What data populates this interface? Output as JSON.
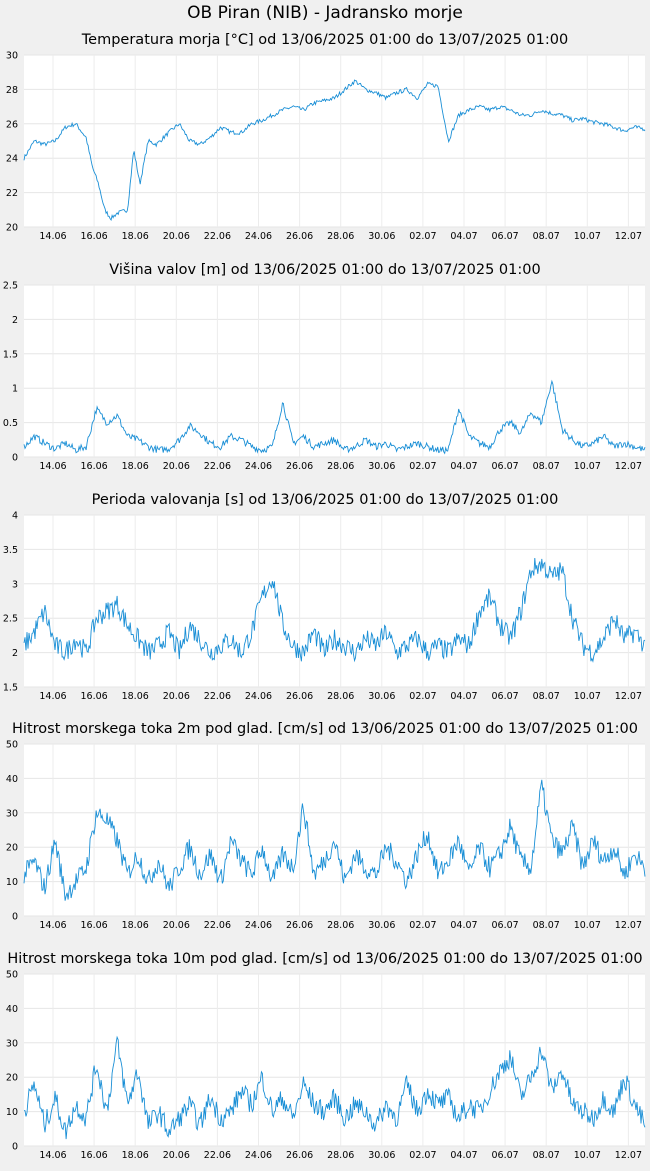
{
  "title": "OB Piran (NIB) - Jadransko morje",
  "x_ticks": [
    "14.06",
    "16.06",
    "18.06",
    "20.06",
    "22.06",
    "24.06",
    "26.06",
    "28.06",
    "30.06",
    "02.07",
    "04.07",
    "06.07",
    "08.07",
    "10.07",
    "12.07"
  ],
  "line_color": "#1a8fd6",
  "chart_data": [
    {
      "type": "line",
      "title": "Temperatura morja [°C] od 13/06/2025 01:00 do 13/07/2025 01:00",
      "ylim": [
        20,
        30
      ],
      "yticks": [
        "20",
        "22",
        "24",
        "26",
        "28",
        "30"
      ],
      "x_range_days": [
        0,
        30
      ],
      "grid": true,
      "series": [
        {
          "x": [
            0,
            0.5,
            1,
            1.5,
            2,
            2.5,
            3,
            3.3,
            3.6,
            3.9,
            4.2,
            4.5,
            5,
            5.3,
            5.6,
            6,
            6.4,
            7,
            7.5,
            8,
            8.5,
            9,
            9.5,
            10,
            10.5,
            11,
            11.5,
            12,
            12.5,
            13,
            13.5,
            14,
            15,
            16,
            16.5,
            17,
            17.5,
            18,
            18.5,
            19,
            19.5,
            20,
            20.5,
            21,
            21.5,
            22,
            22.5,
            23,
            23.5,
            24,
            24.5,
            25,
            25.5,
            26,
            26.5,
            27,
            27.5,
            28,
            28.5,
            29,
            29.5,
            30
          ],
          "y": [
            24,
            25,
            24.8,
            25,
            25.8,
            26,
            25.2,
            23.5,
            22.5,
            21,
            20.5,
            20.8,
            21,
            24.5,
            22.5,
            25,
            24.8,
            25.5,
            26,
            25,
            24.8,
            25.2,
            25.8,
            25.5,
            25.5,
            26,
            26.2,
            26.5,
            26.8,
            27,
            26.8,
            27.2,
            27.5,
            28.5,
            28,
            27.8,
            27.5,
            27.8,
            28,
            27.5,
            28.3,
            28.2,
            25,
            26.5,
            26.8,
            27,
            26.8,
            27,
            26.8,
            26.5,
            26.5,
            26.8,
            26.6,
            26.5,
            26.2,
            26.3,
            26.1,
            26,
            25.8,
            25.6,
            25.8,
            25.7
          ]
        }
      ]
    },
    {
      "type": "line",
      "title": "Višina valov [m] od 13/06/2025 01:00 do 13/07/2025 01:00",
      "ylim": [
        0,
        2.5
      ],
      "yticks": [
        "0",
        "0.5",
        "1",
        "1.5",
        "2",
        "2.5"
      ],
      "x_range_days": [
        0,
        30
      ],
      "grid": true,
      "series": [
        {
          "x": [
            0,
            0.5,
            1,
            1.5,
            2,
            2.5,
            3,
            3.5,
            4,
            4.5,
            5,
            5.5,
            6,
            6.5,
            7,
            7.5,
            8,
            8.5,
            9,
            9.5,
            10,
            10.5,
            11,
            11.5,
            12,
            12.5,
            13,
            13.5,
            14,
            14.5,
            15,
            15.5,
            16,
            16.5,
            17,
            17.5,
            18,
            18.5,
            19,
            19.5,
            20,
            20.5,
            21,
            21.5,
            22,
            22.5,
            23,
            23.5,
            24,
            24.5,
            25,
            25.5,
            26,
            26.5,
            27,
            27.5,
            28,
            28.5,
            29,
            29.5,
            30
          ],
          "y": [
            0.15,
            0.3,
            0.2,
            0.12,
            0.2,
            0.1,
            0.15,
            0.7,
            0.5,
            0.6,
            0.3,
            0.25,
            0.15,
            0.1,
            0.12,
            0.25,
            0.45,
            0.35,
            0.2,
            0.15,
            0.3,
            0.25,
            0.15,
            0.1,
            0.15,
            0.8,
            0.2,
            0.3,
            0.15,
            0.2,
            0.25,
            0.1,
            0.15,
            0.25,
            0.15,
            0.2,
            0.1,
            0.15,
            0.2,
            0.15,
            0.1,
            0.1,
            0.7,
            0.3,
            0.2,
            0.15,
            0.4,
            0.5,
            0.35,
            0.65,
            0.5,
            1.1,
            0.4,
            0.25,
            0.15,
            0.2,
            0.3,
            0.15,
            0.2,
            0.15,
            0.1
          ]
        }
      ]
    },
    {
      "type": "line",
      "title": "Perioda valovanja [s] od 13/06/2025 01:00 do 13/07/2025 01:00",
      "ylim": [
        1.5,
        4
      ],
      "yticks": [
        "1.5",
        "2",
        "2.5",
        "3",
        "3.5",
        "4"
      ],
      "x_range_days": [
        0,
        30
      ],
      "grid": true,
      "series": [
        {
          "x": [
            0,
            0.5,
            1,
            1.5,
            2,
            2.5,
            3,
            3.5,
            4,
            4.5,
            5,
            5.5,
            6,
            6.5,
            7,
            7.5,
            8,
            8.5,
            9,
            9.5,
            10,
            10.5,
            11,
            11.5,
            12,
            12.5,
            13,
            13.5,
            14,
            14.5,
            15,
            15.5,
            16,
            16.5,
            17,
            17.5,
            18,
            18.5,
            19,
            19.5,
            20,
            20.5,
            21,
            21.5,
            22,
            22.5,
            23,
            23.5,
            24,
            24.5,
            25,
            25.5,
            26,
            26.5,
            27,
            27.5,
            28,
            28.5,
            29,
            29.5,
            30
          ],
          "y": [
            2.1,
            2.3,
            2.6,
            2.1,
            2,
            2.2,
            2,
            2.5,
            2.6,
            2.7,
            2.4,
            2.2,
            2,
            2.1,
            2.3,
            2,
            2.4,
            2.2,
            2,
            2.1,
            2.2,
            2,
            2.3,
            2.8,
            3.1,
            2.4,
            2.1,
            2,
            2.3,
            2,
            2.2,
            2.1,
            2,
            2.2,
            2.1,
            2.3,
            2,
            2.1,
            2.2,
            2,
            2.1,
            2,
            2.2,
            2.1,
            2.6,
            2.8,
            2.4,
            2.2,
            2.6,
            3.2,
            3.3,
            3.1,
            3.2,
            2.5,
            2.1,
            2,
            2.2,
            2.5,
            2.2,
            2.3,
            2.1
          ]
        }
      ]
    },
    {
      "type": "line",
      "title": "Hitrost morskega toka 2m pod glad. [cm/s] od 13/06/2025 01:00 do 13/07/2025 01:00",
      "ylim": [
        0,
        50
      ],
      "yticks": [
        "0",
        "10",
        "20",
        "30",
        "40",
        "50"
      ],
      "x_range_days": [
        0,
        30
      ],
      "grid": true,
      "series": [
        {
          "x": [
            0,
            0.5,
            1,
            1.5,
            2,
            2.5,
            3,
            3.5,
            4,
            4.5,
            5,
            5.5,
            6,
            6.5,
            7,
            7.5,
            8,
            8.5,
            9,
            9.5,
            10,
            10.5,
            11,
            11.5,
            12,
            12.5,
            13,
            13.5,
            14,
            14.5,
            15,
            15.5,
            16,
            16.5,
            17,
            17.5,
            18,
            18.5,
            19,
            19.5,
            20,
            20.5,
            21,
            21.5,
            22,
            22.5,
            23,
            23.5,
            24,
            24.5,
            25,
            25.5,
            26,
            26.5,
            27,
            27.5,
            28,
            28.5,
            29,
            29.5,
            30
          ],
          "y": [
            12,
            16,
            8,
            22,
            6,
            10,
            14,
            30,
            28,
            22,
            12,
            18,
            10,
            16,
            8,
            14,
            20,
            12,
            18,
            10,
            22,
            16,
            12,
            20,
            10,
            18,
            14,
            32,
            12,
            16,
            22,
            10,
            18,
            14,
            12,
            20,
            16,
            10,
            18,
            24,
            12,
            16,
            22,
            12,
            20,
            14,
            18,
            26,
            16,
            14,
            38,
            22,
            18,
            26,
            14,
            22,
            16,
            20,
            12,
            18,
            14
          ]
        }
      ]
    },
    {
      "type": "line",
      "title": "Hitrost morskega toka 10m pod glad. [cm/s] od 13/06/2025 01:00 do 13/07/2025 01:00",
      "ylim": [
        0,
        50
      ],
      "yticks": [
        "0",
        "10",
        "20",
        "30",
        "40",
        "50"
      ],
      "x_range_days": [
        0,
        30
      ],
      "grid": true,
      "series": [
        {
          "x": [
            0,
            0.5,
            1,
            1.5,
            2,
            2.5,
            3,
            3.5,
            4,
            4.5,
            5,
            5.5,
            6,
            6.5,
            7,
            7.5,
            8,
            8.5,
            9,
            9.5,
            10,
            10.5,
            11,
            11.5,
            12,
            12.5,
            13,
            13.5,
            14,
            14.5,
            15,
            15.5,
            16,
            16.5,
            17,
            17.5,
            18,
            18.5,
            19,
            19.5,
            20,
            20.5,
            21,
            21.5,
            22,
            22.5,
            23,
            23.5,
            24,
            24.5,
            25,
            25.5,
            26,
            26.5,
            27,
            27.5,
            28,
            28.5,
            29,
            29.5,
            30
          ],
          "y": [
            10,
            18,
            6,
            14,
            4,
            12,
            8,
            24,
            10,
            30,
            12,
            22,
            6,
            10,
            4,
            8,
            12,
            6,
            14,
            8,
            10,
            16,
            12,
            20,
            10,
            14,
            8,
            18,
            12,
            10,
            14,
            8,
            12,
            10,
            6,
            12,
            8,
            18,
            10,
            16,
            12,
            14,
            8,
            12,
            10,
            16,
            22,
            26,
            14,
            20,
            28,
            16,
            22,
            12,
            10,
            8,
            14,
            10,
            20,
            12,
            6
          ]
        }
      ]
    }
  ]
}
